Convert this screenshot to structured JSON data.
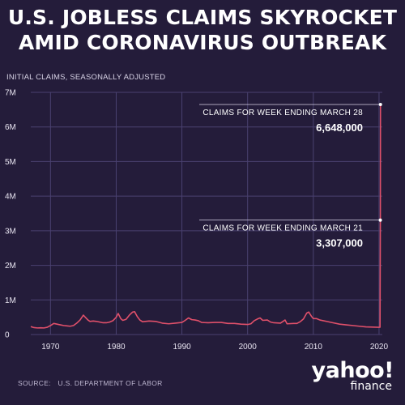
{
  "header": {
    "title_line1": "U.S. JOBLESS CLAIMS SKYROCKET",
    "title_line2": "AMID CORONAVIRUS OUTBREAK",
    "subtitle": "INITIAL CLAIMS, SEASONALLY ADJUSTED"
  },
  "footer": {
    "source_label": "SOURCE:",
    "source_text": "U.S. DEPARTMENT OF LABOR",
    "logo_text": "yahoo!",
    "logo_sub": "finance"
  },
  "colors": {
    "background": "#241c3a",
    "line": "#e0506a",
    "grid": "#4a4170",
    "text": "#ffffff"
  },
  "chart_data": {
    "type": "line",
    "title": "U.S. JOBLESS CLAIMS SKYROCKET AMID CORONAVIRUS OUTBREAK",
    "ylabel": "INITIAL CLAIMS, SEASONALLY ADJUSTED",
    "xlim": [
      1967,
      2020.5
    ],
    "ylim": [
      0,
      7000000
    ],
    "grid": true,
    "x_ticks": [
      1970,
      1980,
      1990,
      2000,
      2010,
      2020
    ],
    "y_ticks": [
      {
        "value": 0,
        "label": "0"
      },
      {
        "value": 1000000,
        "label": "1M"
      },
      {
        "value": 2000000,
        "label": "2M"
      },
      {
        "value": 3000000,
        "label": "3M"
      },
      {
        "value": 4000000,
        "label": "4M"
      },
      {
        "value": 5000000,
        "label": "5M"
      },
      {
        "value": 6000000,
        "label": "6M"
      },
      {
        "value": 7000000,
        "label": "7M"
      }
    ],
    "series": [
      {
        "x": [
          1967.0,
          1967.5,
          1968.0,
          1968.5,
          1969.0,
          1969.5,
          1970.0,
          1970.5,
          1971.0,
          1971.5,
          1972.0,
          1972.5,
          1973.0,
          1973.5,
          1974.0,
          1974.5,
          1975.0,
          1975.3,
          1975.7,
          1976.0,
          1976.5,
          1977.0,
          1977.5,
          1978.0,
          1978.5,
          1979.0,
          1979.5,
          1980.0,
          1980.3,
          1980.7,
          1981.0,
          1981.5,
          1982.0,
          1982.5,
          1982.8,
          1983.2,
          1983.6,
          1984.0,
          1985.0,
          1986.0,
          1987.0,
          1988.0,
          1989.0,
          1990.0,
          1990.5,
          1991.0,
          1991.5,
          1992.0,
          1992.5,
          1993.0,
          1994.0,
          1995.0,
          1996.0,
          1997.0,
          1998.0,
          1999.0,
          2000.0,
          2000.5,
          2001.0,
          2001.5,
          2001.9,
          2002.3,
          2003.0,
          2003.5,
          2004.0,
          2005.0,
          2005.7,
          2006.0,
          2007.0,
          2007.5,
          2008.0,
          2008.5,
          2009.0,
          2009.3,
          2009.7,
          2010.0,
          2010.5,
          2011.0,
          2012.0,
          2013.0,
          2014.0,
          2015.0,
          2016.0,
          2017.0,
          2018.0,
          2019.0,
          2020.0,
          2020.15,
          2020.2,
          2020.22
        ],
        "y": [
          230000,
          200000,
          190000,
          195000,
          190000,
          210000,
          260000,
          320000,
          300000,
          280000,
          260000,
          250000,
          240000,
          260000,
          330000,
          420000,
          560000,
          500000,
          420000,
          380000,
          390000,
          380000,
          360000,
          340000,
          340000,
          360000,
          400000,
          500000,
          610000,
          460000,
          410000,
          440000,
          560000,
          650000,
          660000,
          520000,
          420000,
          370000,
          390000,
          380000,
          330000,
          310000,
          330000,
          350000,
          410000,
          480000,
          430000,
          420000,
          400000,
          350000,
          340000,
          350000,
          350000,
          320000,
          320000,
          300000,
          290000,
          310000,
          400000,
          450000,
          480000,
          410000,
          420000,
          360000,
          340000,
          330000,
          420000,
          310000,
          320000,
          320000,
          370000,
          450000,
          620000,
          650000,
          530000,
          460000,
          460000,
          420000,
          380000,
          340000,
          300000,
          280000,
          260000,
          240000,
          220000,
          215000,
          210000,
          211000,
          3307000,
          6648000
        ]
      }
    ],
    "annotations": [
      {
        "label": "CLAIMS FOR WEEK ENDING MARCH 28",
        "value_label": "6,648,000",
        "x": 2020.22,
        "y": 6648000
      },
      {
        "label": "CLAIMS FOR WEEK ENDING MARCH 21",
        "value_label": "3,307,000",
        "x": 2020.2,
        "y": 3307000
      }
    ]
  }
}
